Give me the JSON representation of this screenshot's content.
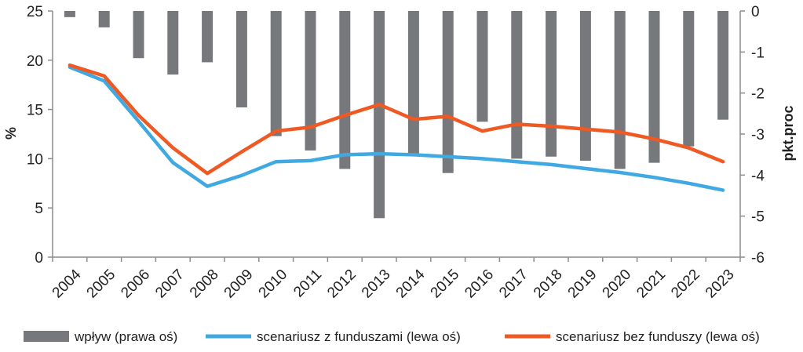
{
  "chart_data": {
    "type": "bar+line",
    "categories": [
      "2004",
      "2005",
      "2006",
      "2007",
      "2008",
      "2009",
      "2010",
      "2011",
      "2012",
      "2013",
      "2014",
      "2015",
      "2016",
      "2017",
      "2018",
      "2019",
      "2020",
      "2021",
      "2022",
      "2023"
    ],
    "bar_series": {
      "name": "wpływ (prawa oś)",
      "axis": "right",
      "color": "#77787b",
      "values": [
        -0.15,
        -0.4,
        -1.15,
        -1.55,
        -1.25,
        -2.35,
        -3.05,
        -3.4,
        -3.85,
        -5.05,
        -3.5,
        -3.95,
        -2.7,
        -3.6,
        -3.55,
        -3.65,
        -3.85,
        -3.7,
        -3.3,
        -2.65
      ]
    },
    "line_series": [
      {
        "name": "scenariusz z funduszami (lewa oś)",
        "axis": "left",
        "color": "#41a9e1",
        "values": [
          19.3,
          17.9,
          13.8,
          9.6,
          7.2,
          8.3,
          9.7,
          9.8,
          10.4,
          10.5,
          10.4,
          10.2,
          10.0,
          9.7,
          9.4,
          9.0,
          8.6,
          8.1,
          7.5,
          6.8
        ]
      },
      {
        "name": "scenariusz bez funduszy (lewa oś)",
        "axis": "left",
        "color": "#ef5a24",
        "values": [
          19.5,
          18.4,
          14.4,
          11.1,
          8.5,
          10.7,
          12.8,
          13.2,
          14.4,
          15.5,
          14.0,
          14.3,
          12.8,
          13.5,
          13.3,
          13.0,
          12.7,
          12.0,
          11.1,
          9.7
        ]
      }
    ],
    "y_left": {
      "label": "%",
      "ticks": [
        "0",
        "5",
        "10",
        "15",
        "20",
        "25"
      ],
      "ylim": [
        0,
        25
      ]
    },
    "y_right": {
      "label": "pkt.proc",
      "ticks": [
        "0",
        "-1",
        "-2",
        "-3",
        "-4",
        "-5",
        "-6"
      ],
      "ylim": [
        -6,
        0
      ]
    },
    "grid": false,
    "legend_position": "bottom"
  }
}
